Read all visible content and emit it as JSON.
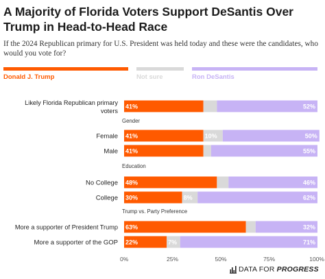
{
  "title": "A Majority of Florida Voters Support DeSantis Over Trump in Head-to-Head Race",
  "subtitle": "If the 2024 Republican primary for U.S. President was held today and these were the candidates, who would you vote for?",
  "footer": {
    "brand_prefix": "DATA FOR ",
    "brand_emphasis": "PROGRESS"
  },
  "chart_data": {
    "type": "bar",
    "orientation": "horizontal",
    "stacked": true,
    "xlim": [
      0,
      100
    ],
    "x_ticks": [
      "0%",
      "25%",
      "50%",
      "75%",
      "100%"
    ],
    "legend_position": "top",
    "series": [
      {
        "name": "Donald J. Trump",
        "color": "#ff5a00"
      },
      {
        "name": "Not sure",
        "color": "#d9d9d9"
      },
      {
        "name": "Ron DeSantis",
        "color": "#c7b3f5"
      }
    ],
    "groups": [
      {
        "header": "",
        "rows": [
          {
            "label": "Likely Florida Republican primary voters",
            "values": [
              41,
              7,
              52
            ],
            "labels": [
              "41%",
              "",
              "52%"
            ]
          }
        ]
      },
      {
        "header": "Gender",
        "rows": [
          {
            "label": "Female",
            "values": [
              41,
              10,
              50
            ],
            "labels": [
              "41%",
              "10%",
              "50%"
            ]
          },
          {
            "label": "Male",
            "values": [
              41,
              4,
              55
            ],
            "labels": [
              "41%",
              "",
              "55%"
            ]
          }
        ]
      },
      {
        "header": "Education",
        "rows": [
          {
            "label": "No College",
            "values": [
              48,
              6,
              46
            ],
            "labels": [
              "48%",
              "",
              "46%"
            ]
          },
          {
            "label": "College",
            "values": [
              30,
              8,
              62
            ],
            "labels": [
              "30%",
              "8%",
              "62%"
            ]
          }
        ]
      },
      {
        "header": "Trump vs. Party Preference",
        "rows": [
          {
            "label": "More a supporter of President Trump",
            "values": [
              63,
              5,
              32
            ],
            "labels": [
              "63%",
              "",
              "32%"
            ]
          },
          {
            "label": "More a supporter of the GOP",
            "values": [
              22,
              7,
              71
            ],
            "labels": [
              "22%",
              "7%",
              "71%"
            ]
          }
        ]
      }
    ]
  }
}
